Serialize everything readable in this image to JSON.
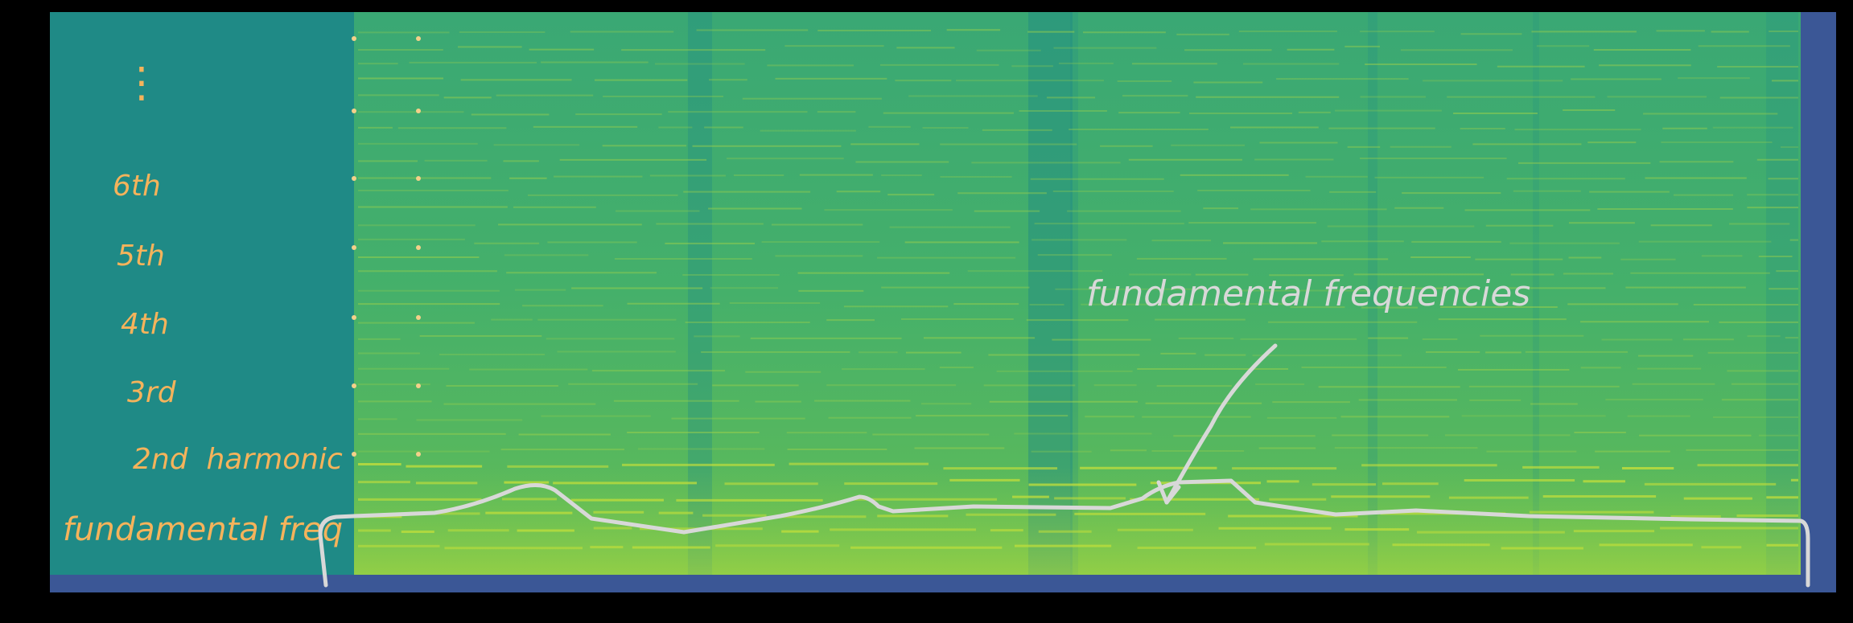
{
  "harmonic_labels": [
    {
      "key": "ellipsis",
      "text": "⋮"
    },
    {
      "key": "6th",
      "text": "6th"
    },
    {
      "key": "5th",
      "text": "5th"
    },
    {
      "key": "4th",
      "text": "4th"
    },
    {
      "key": "3rd",
      "text": "3rd"
    },
    {
      "key": "2nd",
      "text": "2nd  harmonic"
    },
    {
      "key": "fund",
      "text": "fundamental freq"
    }
  ],
  "annotation": {
    "text": "fundamental frequencies"
  },
  "colors": {
    "background": "#000000",
    "spectrogram_dark": "#1f8a86",
    "spectrogram_mid": "#2ea37a",
    "spectrogram_bright": "#b8dc3a",
    "silence_band": "#3b5796",
    "label_orange": "#f5b35b",
    "annotation_white": "#d8d8d8"
  }
}
